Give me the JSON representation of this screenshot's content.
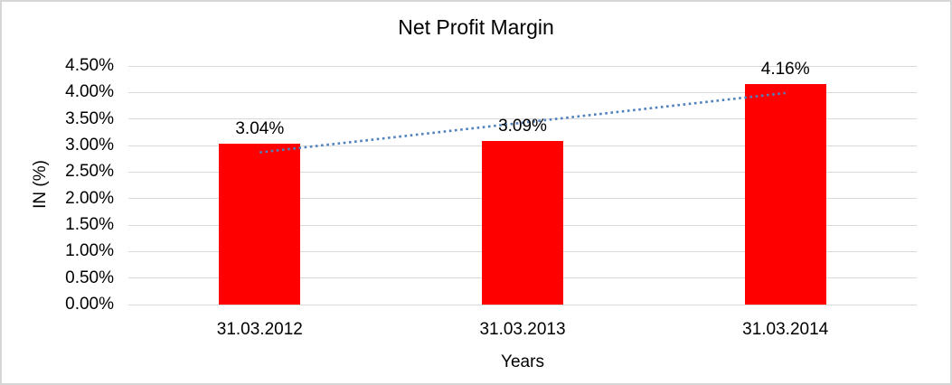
{
  "frame": {
    "background": "#ffffff",
    "border_color": "#d6d6d6"
  },
  "chart_data": {
    "type": "bar",
    "title": "Net Profit Margin",
    "xlabel": "Years",
    "ylabel": "IN (%)",
    "categories": [
      "31.03.2012",
      "31.03.2013",
      "31.03.2014"
    ],
    "values": [
      3.04,
      3.09,
      4.16
    ],
    "data_labels": [
      "3.04%",
      "3.09%",
      "4.16%"
    ],
    "ylim": [
      0,
      4.5
    ],
    "ytick_step": 0.5,
    "ytick_labels": [
      "0.00%",
      "0.50%",
      "1.00%",
      "1.50%",
      "2.00%",
      "2.50%",
      "3.00%",
      "3.50%",
      "4.00%",
      "4.50%"
    ],
    "grid": true,
    "gridline_color": "#d9d9d9",
    "bar_color": "#ff0000",
    "text_color": "#000000",
    "legend": "none",
    "trendline": {
      "type": "linear",
      "style": "dotted",
      "color": "#4f81bd",
      "fit_values": [
        2.87,
        3.43,
        3.99
      ]
    }
  }
}
